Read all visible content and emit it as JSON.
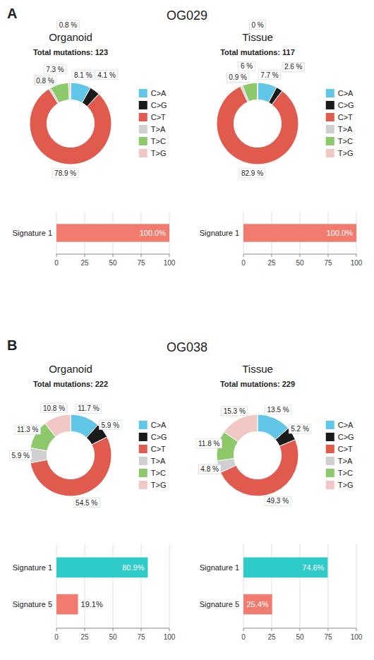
{
  "chart_data": [
    {
      "type": "pie",
      "title": "Organoid",
      "subtitle": "Total mutations: 123",
      "annotations": [
        "A",
        "OG029"
      ],
      "categories": [
        "C>A",
        "C>G",
        "C>T",
        "T>A",
        "T>C",
        "T>G"
      ],
      "values": [
        8.1,
        4.1,
        78.9,
        0.8,
        7.3,
        0.8
      ],
      "value_labels": [
        "8.1 %",
        "4.1 %",
        "78.9 %",
        "0.8 %",
        "7.3 %",
        "0.8 %"
      ],
      "colors": [
        "#62C6E8",
        "#1A1A1A",
        "#E05A4E",
        "#CFCFCF",
        "#8DC96A",
        "#F2C8C4"
      ],
      "legend": "right",
      "data_labels": true
    },
    {
      "type": "pie",
      "title": "Tissue",
      "subtitle": "Total mutations: 117",
      "categories": [
        "C>A",
        "C>G",
        "C>T",
        "T>A",
        "T>C",
        "T>G"
      ],
      "values": [
        7.7,
        2.6,
        82.9,
        0.9,
        6.0,
        0.0
      ],
      "value_labels": [
        "7.7 %",
        "2.6 %",
        "82.9 %",
        "0.9 %",
        "6 %",
        "0 %"
      ],
      "colors": [
        "#62C6E8",
        "#1A1A1A",
        "#E05A4E",
        "#CFCFCF",
        "#8DC96A",
        "#F2C8C4"
      ],
      "legend": "right",
      "data_labels": true
    },
    {
      "type": "bar",
      "orientation": "horizontal",
      "categories": [
        "Signature 1"
      ],
      "values": [
        100.0
      ],
      "value_labels": [
        "100.0%"
      ],
      "colors": [
        "#F07B6E"
      ],
      "xlim": [
        0,
        100
      ],
      "xticks": [
        0,
        25,
        50,
        75,
        100
      ],
      "grid": true,
      "data_labels": true
    },
    {
      "type": "bar",
      "orientation": "horizontal",
      "categories": [
        "Signature 1"
      ],
      "values": [
        100.0
      ],
      "value_labels": [
        "100.0%"
      ],
      "colors": [
        "#F07B6E"
      ],
      "xlim": [
        0,
        100
      ],
      "xticks": [
        0,
        25,
        50,
        75,
        100
      ],
      "grid": true,
      "data_labels": true
    },
    {
      "type": "pie",
      "title": "Organoid",
      "subtitle": "Total mutations: 222",
      "annotations": [
        "B",
        "OG038"
      ],
      "categories": [
        "C>A",
        "C>G",
        "C>T",
        "T>A",
        "T>C",
        "T>G"
      ],
      "values": [
        11.7,
        5.9,
        54.5,
        5.9,
        11.3,
        10.8
      ],
      "value_labels": [
        "11.7 %",
        "5.9 %",
        "54.5 %",
        "5.9 %",
        "11.3 %",
        "10.8 %"
      ],
      "colors": [
        "#62C6E8",
        "#1A1A1A",
        "#E05A4E",
        "#CFCFCF",
        "#8DC96A",
        "#F2C8C4"
      ],
      "legend": "right",
      "data_labels": true
    },
    {
      "type": "pie",
      "title": "Tissue",
      "subtitle": "Total mutations: 229",
      "categories": [
        "C>A",
        "C>G",
        "C>T",
        "T>A",
        "T>C",
        "T>G"
      ],
      "values": [
        13.5,
        5.2,
        49.3,
        4.8,
        11.8,
        15.3
      ],
      "value_labels": [
        "13.5 %",
        "5.2 %",
        "49.3 %",
        "4.8 %",
        "11.8 %",
        "15.3 %"
      ],
      "colors": [
        "#62C6E8",
        "#1A1A1A",
        "#E05A4E",
        "#CFCFCF",
        "#8DC96A",
        "#F2C8C4"
      ],
      "legend": "right",
      "data_labels": true
    },
    {
      "type": "bar",
      "orientation": "horizontal",
      "categories": [
        "Signature 1",
        "Signature 5"
      ],
      "values": [
        80.9,
        19.1
      ],
      "value_labels": [
        "80.9%",
        "19.1%"
      ],
      "colors": [
        "#2ECBC8",
        "#F07B6E"
      ],
      "xlim": [
        0,
        100
      ],
      "xticks": [
        0,
        25,
        50,
        75,
        100
      ],
      "grid": true,
      "data_labels": true
    },
    {
      "type": "bar",
      "orientation": "horizontal",
      "categories": [
        "Signature 1",
        "Signature 5"
      ],
      "values": [
        74.6,
        25.4
      ],
      "value_labels": [
        "74.6%",
        "25.4%"
      ],
      "colors": [
        "#2ECBC8",
        "#F07B6E"
      ],
      "xlim": [
        0,
        100
      ],
      "xticks": [
        0,
        25,
        50,
        75,
        100
      ],
      "grid": true,
      "data_labels": true
    }
  ]
}
